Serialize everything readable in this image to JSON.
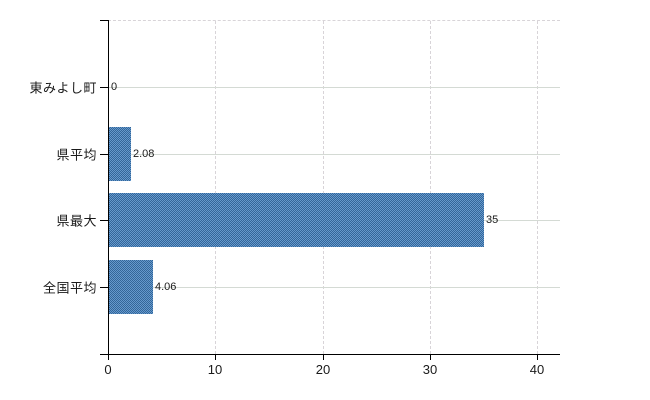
{
  "chart_data": {
    "type": "bar",
    "orientation": "horizontal",
    "title": "",
    "xlabel": "",
    "ylabel": "",
    "categories": [
      "東みよし町",
      "県平均",
      "県最大",
      "全国平均"
    ],
    "values": [
      0,
      2.08,
      35,
      4.06
    ],
    "value_labels": [
      "0",
      "2.08",
      "35",
      "4.06"
    ],
    "x_ticks": [
      0,
      10,
      20,
      30,
      40
    ],
    "x_tick_labels": [
      "0",
      "10",
      "20",
      "30",
      "40"
    ],
    "xlim": [
      0,
      42.1
    ],
    "grid": true,
    "legend": false,
    "colors": {
      "bar": "#4d80b2",
      "bar_dither_dark": "#336699",
      "bar_dither_light": "#6699cc",
      "grid_h": "#d4dad4",
      "grid_v": "#d8d4d8",
      "axis": "#000000",
      "text": "#1a1a1a"
    }
  }
}
